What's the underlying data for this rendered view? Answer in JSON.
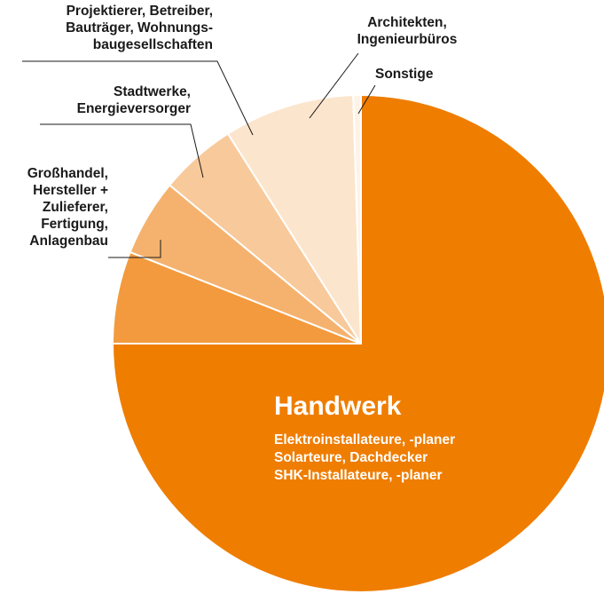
{
  "chart_data": {
    "type": "pie",
    "title": "",
    "start_angle_deg": 0,
    "direction": "clockwise",
    "slices": [
      {
        "name": "Handwerk",
        "value": 75.0,
        "color": "#ef7d00",
        "label": "Handwerk",
        "sublabel_lines": [
          "Elektroinstallateure, -planer",
          "Solarteure, Dachdecker",
          "SHK-Installateure, -planer"
        ]
      },
      {
        "name": "Großhandel, Hersteller + Zulieferer, Fertigung, Anlagenbau",
        "value": 6.0,
        "color": "#f29a3d",
        "label_lines": [
          "Großhandel,",
          "Hersteller +",
          "Zulieferer,",
          "Fertigung,",
          "Anlagenbau"
        ]
      },
      {
        "name": "Stadtwerke, Energieversorger",
        "value": 5.0,
        "color": "#f5b26e",
        "label_lines": [
          "Stadtwerke,",
          "Energieversorger"
        ]
      },
      {
        "name": "Projektierer, Betreiber, Bauträger, Wohnungsbaugesellschaften",
        "value": 5.0,
        "color": "#f8c99a",
        "label_lines": [
          "Projektierer, Betreiber,",
          "Bauträger, Wohnungs-",
          "baugesellschaften"
        ]
      },
      {
        "name": "Architekten, Ingenieurbüros",
        "value": 8.5,
        "color": "#fce5cd",
        "label_lines": [
          "Architekten,",
          "Ingenieurbüros"
        ]
      },
      {
        "name": "Sonstige",
        "value": 0.5,
        "color": "#fef3e6",
        "label_lines": [
          "Sonstige"
        ]
      }
    ],
    "legend": "none",
    "grid": false
  }
}
